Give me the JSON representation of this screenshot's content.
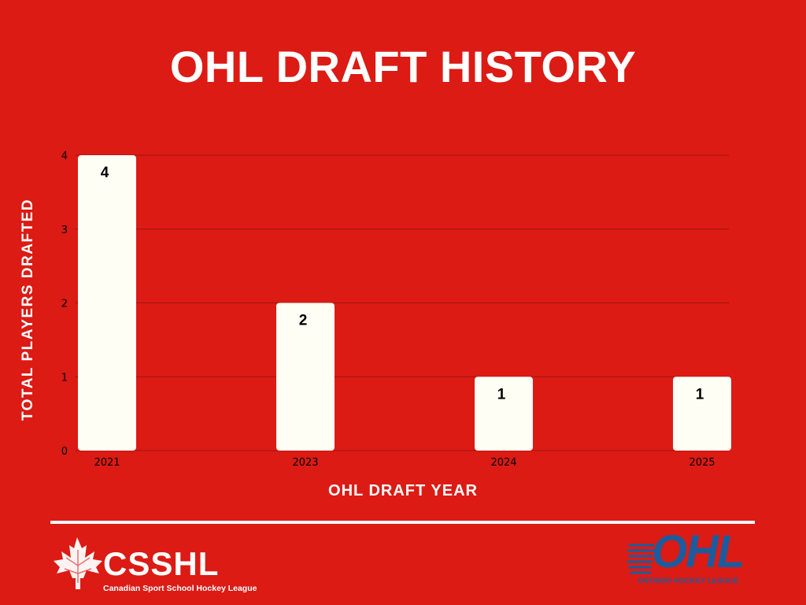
{
  "colors": {
    "background": "#DB1B14",
    "bar": "#FFFEF5",
    "gridline": "#A01410",
    "text_light": "#FFFFFF",
    "text_dark": "#000000",
    "ohl_blue": "#1C5C9E"
  },
  "chart_data": {
    "type": "bar",
    "title": "OHL DRAFT HISTORY",
    "xlabel": "OHL DRAFT YEAR",
    "ylabel": "TOTAL PLAYERS DRAFTED",
    "categories": [
      "2021",
      "2023",
      "2024",
      "2025"
    ],
    "values": [
      4,
      2,
      1,
      1
    ],
    "ylim": [
      0,
      4
    ],
    "yticks": [
      0,
      1,
      2,
      3,
      4
    ],
    "grid": true,
    "data_labels": true
  },
  "footer": {
    "csshl_logo_text": "CSSHL",
    "csshl_logo_subtitle": "Canadian Sport School Hockey League",
    "ohl_logo_text": "OHL",
    "ohl_logo_subtitle": "ONTARIO HOCKEY LEAGUE"
  }
}
